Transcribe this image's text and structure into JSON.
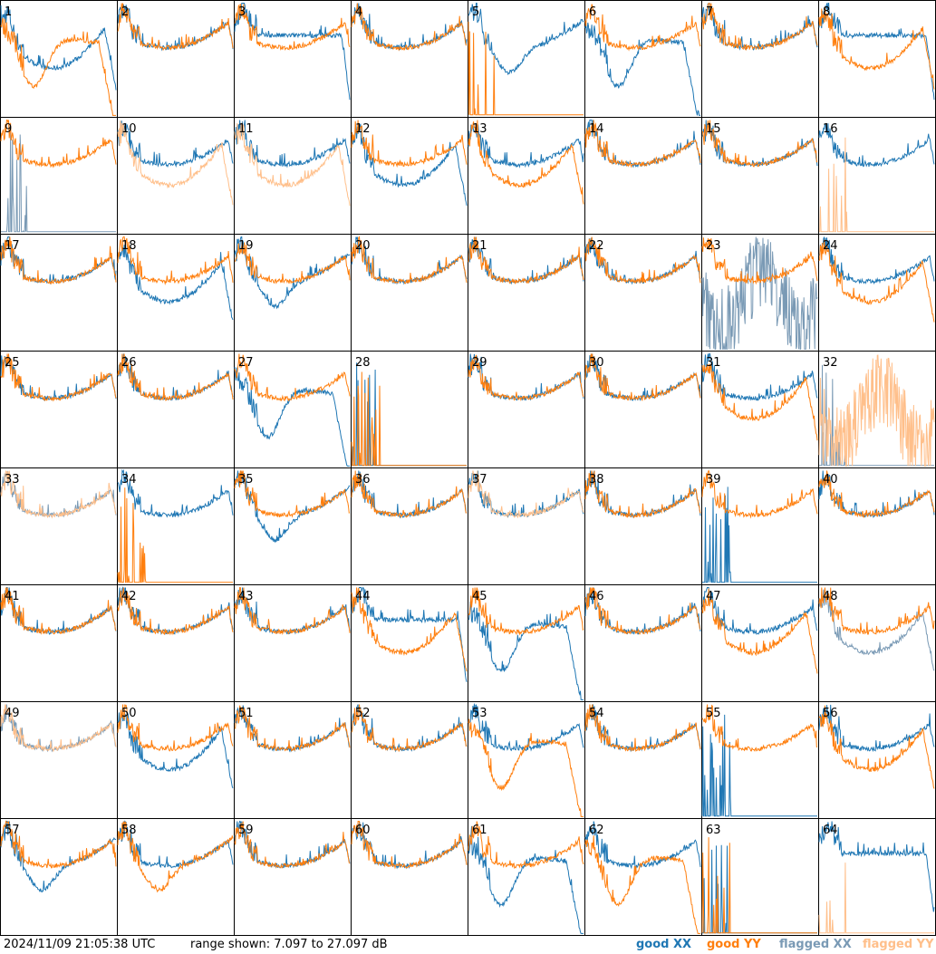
{
  "footer": {
    "timestamp": "2024/11/09 21:05:38 UTC",
    "range_text": "range shown: 7.097 to 27.097 dB"
  },
  "legend": [
    {
      "key": "good_xx",
      "prefix": "good ",
      "suffix": "XX",
      "color": "#1f77b4"
    },
    {
      "key": "good_yy",
      "prefix": "good ",
      "suffix": "YY",
      "color": "#ff7f0e"
    },
    {
      "key": "flagged_xx",
      "prefix": "flagged ",
      "suffix": "XX",
      "color": "#7a9ab5"
    },
    {
      "key": "flagged_yy",
      "prefix": "flagged ",
      "suffix": "YY",
      "color": "#ffbf8a"
    }
  ],
  "chart_data": {
    "type": "line",
    "ylim": [
      7.097,
      27.097
    ],
    "grid": "8x8 small multiples",
    "panels": [
      {
        "label": "1",
        "xx": "good",
        "yy": "good",
        "xx_shape": "sag",
        "yy_shape": "deepsag"
      },
      {
        "label": "2",
        "xx": "good",
        "yy": "good",
        "xx_shape": "bowl",
        "yy_shape": "bowl"
      },
      {
        "label": "3",
        "xx": "good",
        "yy": "good",
        "xx_shape": "flat",
        "yy_shape": "bowl"
      },
      {
        "label": "4",
        "xx": "good",
        "yy": "good",
        "xx_shape": "bowl",
        "yy_shape": "bowl"
      },
      {
        "label": "5",
        "xx": "good",
        "yy": "good",
        "xx_shape": "dip",
        "yy_shape": "dead"
      },
      {
        "label": "6",
        "xx": "good",
        "yy": "good",
        "xx_shape": "deepsag",
        "yy_shape": "bowl"
      },
      {
        "label": "7",
        "xx": "good",
        "yy": "good",
        "xx_shape": "bowl",
        "yy_shape": "bowl"
      },
      {
        "label": "8",
        "xx": "good",
        "yy": "good",
        "xx_shape": "flat",
        "yy_shape": "sag"
      },
      {
        "label": "9",
        "xx": "flagged",
        "yy": "good",
        "xx_shape": "dead",
        "yy_shape": "bowl"
      },
      {
        "label": "10",
        "xx": "good",
        "yy": "flagged",
        "xx_shape": "bowl",
        "yy_shape": "sag"
      },
      {
        "label": "11",
        "xx": "good",
        "yy": "flagged",
        "xx_shape": "bowl",
        "yy_shape": "sag"
      },
      {
        "label": "12",
        "xx": "good",
        "yy": "good",
        "xx_shape": "sag",
        "yy_shape": "bowl"
      },
      {
        "label": "13",
        "xx": "good",
        "yy": "good",
        "xx_shape": "bowl",
        "yy_shape": "sag"
      },
      {
        "label": "14",
        "xx": "good",
        "yy": "good",
        "xx_shape": "bowl",
        "yy_shape": "bowl"
      },
      {
        "label": "15",
        "xx": "good",
        "yy": "good",
        "xx_shape": "bowl",
        "yy_shape": "bowl"
      },
      {
        "label": "16",
        "xx": "good",
        "yy": "flagged",
        "xx_shape": "bowl",
        "yy_shape": "dead"
      },
      {
        "label": "17",
        "xx": "good",
        "yy": "good",
        "xx_shape": "bowl",
        "yy_shape": "bowl"
      },
      {
        "label": "18",
        "xx": "good",
        "yy": "good",
        "xx_shape": "sag",
        "yy_shape": "bowl"
      },
      {
        "label": "19",
        "xx": "good",
        "yy": "good",
        "xx_shape": "dip",
        "yy_shape": "bowl"
      },
      {
        "label": "20",
        "xx": "good",
        "yy": "good",
        "xx_shape": "bowl",
        "yy_shape": "bowl"
      },
      {
        "label": "21",
        "xx": "good",
        "yy": "good",
        "xx_shape": "bowl",
        "yy_shape": "bowl"
      },
      {
        "label": "22",
        "xx": "good",
        "yy": "good",
        "xx_shape": "bowl",
        "yy_shape": "bowl"
      },
      {
        "label": "23",
        "xx": "flagged",
        "yy": "good",
        "xx_shape": "noisy",
        "yy_shape": "bowl"
      },
      {
        "label": "24",
        "xx": "good",
        "yy": "good",
        "xx_shape": "bowl",
        "yy_shape": "sag"
      },
      {
        "label": "25",
        "xx": "good",
        "yy": "good",
        "xx_shape": "bowl",
        "yy_shape": "bowl"
      },
      {
        "label": "26",
        "xx": "good",
        "yy": "good",
        "xx_shape": "bowl",
        "yy_shape": "bowl"
      },
      {
        "label": "27",
        "xx": "good",
        "yy": "good",
        "xx_shape": "deepsag",
        "yy_shape": "bowl"
      },
      {
        "label": "28",
        "xx": "good",
        "yy": "good",
        "xx_shape": "dead",
        "yy_shape": "dead"
      },
      {
        "label": "29",
        "xx": "good",
        "yy": "good",
        "xx_shape": "bowl",
        "yy_shape": "bowl"
      },
      {
        "label": "30",
        "xx": "good",
        "yy": "good",
        "xx_shape": "bowl",
        "yy_shape": "bowl"
      },
      {
        "label": "31",
        "xx": "good",
        "yy": "good",
        "xx_shape": "bowl",
        "yy_shape": "sag"
      },
      {
        "label": "32",
        "xx": "flagged",
        "yy": "flagged",
        "xx_shape": "dead",
        "yy_shape": "noisy"
      },
      {
        "label": "33",
        "xx": "flagged",
        "yy": "flagged",
        "xx_shape": "bowl",
        "yy_shape": "bowl"
      },
      {
        "label": "34",
        "xx": "good",
        "yy": "good",
        "xx_shape": "bowl",
        "yy_shape": "dead"
      },
      {
        "label": "35",
        "xx": "good",
        "yy": "good",
        "xx_shape": "dip",
        "yy_shape": "bowl"
      },
      {
        "label": "36",
        "xx": "good",
        "yy": "good",
        "xx_shape": "bowl",
        "yy_shape": "bowl"
      },
      {
        "label": "37",
        "xx": "good",
        "yy": "flagged",
        "xx_shape": "bowl",
        "yy_shape": "bowl"
      },
      {
        "label": "38",
        "xx": "good",
        "yy": "good",
        "xx_shape": "bowl",
        "yy_shape": "bowl"
      },
      {
        "label": "39",
        "xx": "good",
        "yy": "good",
        "xx_shape": "dead",
        "yy_shape": "bowl"
      },
      {
        "label": "40",
        "xx": "good",
        "yy": "good",
        "xx_shape": "bowl",
        "yy_shape": "bowl"
      },
      {
        "label": "41",
        "xx": "good",
        "yy": "good",
        "xx_shape": "bowl",
        "yy_shape": "bowl"
      },
      {
        "label": "42",
        "xx": "good",
        "yy": "good",
        "xx_shape": "bowl",
        "yy_shape": "bowl"
      },
      {
        "label": "43",
        "xx": "good",
        "yy": "good",
        "xx_shape": "bowl",
        "yy_shape": "bowl"
      },
      {
        "label": "44",
        "xx": "good",
        "yy": "good",
        "xx_shape": "flat",
        "yy_shape": "sag"
      },
      {
        "label": "45",
        "xx": "good",
        "yy": "good",
        "xx_shape": "deepsag",
        "yy_shape": "bowl"
      },
      {
        "label": "46",
        "xx": "good",
        "yy": "good",
        "xx_shape": "bowl",
        "yy_shape": "bowl"
      },
      {
        "label": "47",
        "xx": "good",
        "yy": "good",
        "xx_shape": "bowl",
        "yy_shape": "sag"
      },
      {
        "label": "48",
        "xx": "flagged",
        "yy": "good",
        "xx_shape": "sag",
        "yy_shape": "bowl"
      },
      {
        "label": "49",
        "xx": "flagged",
        "yy": "flagged",
        "xx_shape": "bowl",
        "yy_shape": "bowl"
      },
      {
        "label": "50",
        "xx": "good",
        "yy": "good",
        "xx_shape": "sag",
        "yy_shape": "bowl"
      },
      {
        "label": "51",
        "xx": "good",
        "yy": "good",
        "xx_shape": "bowl",
        "yy_shape": "bowl"
      },
      {
        "label": "52",
        "xx": "good",
        "yy": "good",
        "xx_shape": "bowl",
        "yy_shape": "bowl"
      },
      {
        "label": "53",
        "xx": "good",
        "yy": "good",
        "xx_shape": "bowl",
        "yy_shape": "deepsag"
      },
      {
        "label": "54",
        "xx": "good",
        "yy": "good",
        "xx_shape": "bowl",
        "yy_shape": "bowl"
      },
      {
        "label": "55",
        "xx": "good",
        "yy": "good",
        "xx_shape": "dead",
        "yy_shape": "bowl"
      },
      {
        "label": "56",
        "xx": "good",
        "yy": "good",
        "xx_shape": "bowl",
        "yy_shape": "sag"
      },
      {
        "label": "57",
        "xx": "good",
        "yy": "good",
        "xx_shape": "dip",
        "yy_shape": "bowl"
      },
      {
        "label": "58",
        "xx": "good",
        "yy": "good",
        "xx_shape": "bowl",
        "yy_shape": "dip"
      },
      {
        "label": "59",
        "xx": "good",
        "yy": "good",
        "xx_shape": "bowl",
        "yy_shape": "bowl"
      },
      {
        "label": "60",
        "xx": "good",
        "yy": "good",
        "xx_shape": "bowl",
        "yy_shape": "bowl"
      },
      {
        "label": "61",
        "xx": "good",
        "yy": "good",
        "xx_shape": "deepsag",
        "yy_shape": "bowl"
      },
      {
        "label": "62",
        "xx": "good",
        "yy": "good",
        "xx_shape": "bowl",
        "yy_shape": "deepsag"
      },
      {
        "label": "63",
        "xx": "good",
        "yy": "good",
        "xx_shape": "dead",
        "yy_shape": "dead"
      },
      {
        "label": "64",
        "xx": "good",
        "yy": "flagged",
        "xx_shape": "flat",
        "yy_shape": "dead"
      }
    ]
  }
}
